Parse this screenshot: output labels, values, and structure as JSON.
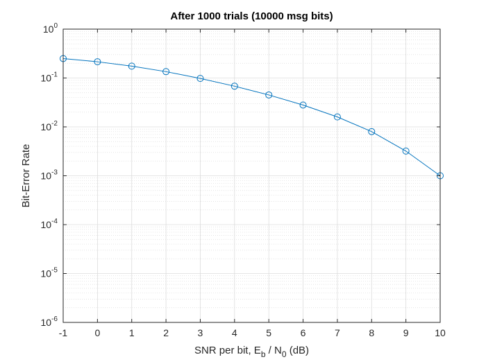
{
  "chart_data": {
    "type": "line",
    "title": "After 1000 trials (10000 msg bits)",
    "xlabel": {
      "pre": "SNR per bit, E",
      "sub1": "b",
      "mid": " / N",
      "sub2": "0",
      "post": " (dB)"
    },
    "ylabel": "Bit-Error Rate",
    "xlim": [
      -1,
      10
    ],
    "ylim": [
      1e-06,
      1
    ],
    "yscale": "log",
    "grid": true,
    "minor_grid": true,
    "x_ticks": [
      -1,
      0,
      1,
      2,
      3,
      4,
      5,
      6,
      7,
      8,
      9,
      10
    ],
    "x_tick_labels": [
      "-1",
      "0",
      "1",
      "2",
      "3",
      "4",
      "5",
      "6",
      "7",
      "8",
      "9",
      "10"
    ],
    "y_ticks": [
      {
        "base": "10",
        "exp": "0"
      },
      {
        "base": "10",
        "exp": "-1"
      },
      {
        "base": "10",
        "exp": "-2"
      },
      {
        "base": "10",
        "exp": "-3"
      },
      {
        "base": "10",
        "exp": "-4"
      },
      {
        "base": "10",
        "exp": "-5"
      },
      {
        "base": "10",
        "exp": "-6"
      }
    ],
    "series": [
      {
        "color": "#0072BD",
        "marker": "circle",
        "x": [
          -1,
          0,
          1,
          2,
          3,
          4,
          5,
          6,
          7,
          8,
          9,
          10
        ],
        "y": [
          0.25,
          0.215,
          0.175,
          0.135,
          0.098,
          0.068,
          0.045,
          0.028,
          0.016,
          0.008,
          0.0032,
          0.001
        ]
      }
    ]
  }
}
